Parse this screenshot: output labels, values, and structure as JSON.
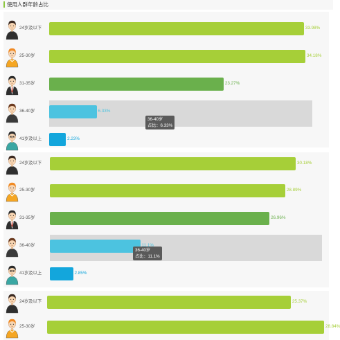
{
  "page": {
    "title": "使用人群年龄占比"
  },
  "colors": {
    "lime": "#a6cf38",
    "green": "#6ab04c",
    "cyan": "#4cc3e0",
    "blue": "#13a6dc",
    "hover": "#d9d9d9",
    "tooltip": "#5a5a5a"
  },
  "chart_data": [
    {
      "type": "bar",
      "categories": [
        "24岁及以下",
        "25-30岁",
        "31-35岁",
        "36-40岁",
        "41岁及以上"
      ],
      "values": [
        33.98,
        34.18,
        23.27,
        6.33,
        2.23
      ],
      "value_labels": [
        "33.98%",
        "34.18%",
        "23.27%",
        "6.33%",
        "2.23%"
      ],
      "tooltip": {
        "category": "36-40岁",
        "text": "占比：6.33%"
      }
    },
    {
      "type": "bar",
      "categories": [
        "24岁及以下",
        "25-30岁",
        "31-35岁",
        "36-40岁",
        "41岁及以上"
      ],
      "values": [
        30.18,
        28.89,
        26.96,
        11.1,
        2.85
      ],
      "value_labels": [
        "30.18%",
        "28.89%",
        "26.96%",
        "11.1%",
        "2.85%"
      ],
      "tooltip": {
        "category": "36-40岁",
        "text": "占比：11.1%"
      }
    },
    {
      "type": "bar",
      "categories": [
        "24岁及以下",
        "25-30岁"
      ],
      "values": [
        25.37,
        28.84
      ],
      "value_labels": [
        "25.37%",
        "28.84%"
      ]
    }
  ],
  "avatars": [
    "young-man-dark-hair-icon",
    "young-man-orange-hair-icon",
    "man-suit-tie-icon",
    "man-brown-hair-icon",
    "man-glasses-teal-shirt-icon"
  ]
}
